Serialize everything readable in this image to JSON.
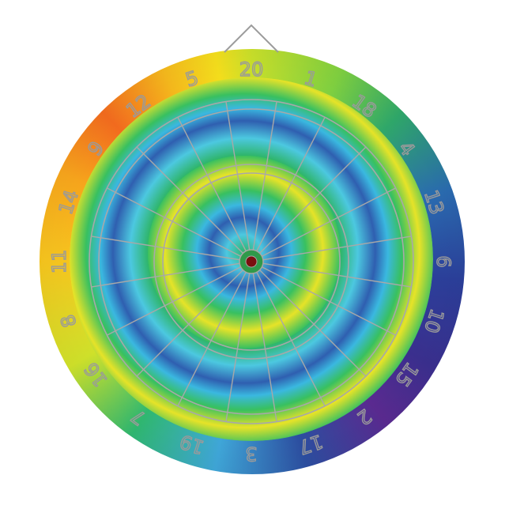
{
  "product": "dartboard",
  "numbers": [
    "20",
    "1",
    "18",
    "4",
    "13",
    "6",
    "10",
    "15",
    "2",
    "17",
    "3",
    "19",
    "7",
    "16",
    "8",
    "11",
    "14",
    "9",
    "12",
    "5"
  ],
  "colors": {
    "bull": "#7a1010",
    "outer_bull": "#2f9a4a",
    "wire": "#a8a8a8",
    "hanger": "#9c9c9c"
  }
}
